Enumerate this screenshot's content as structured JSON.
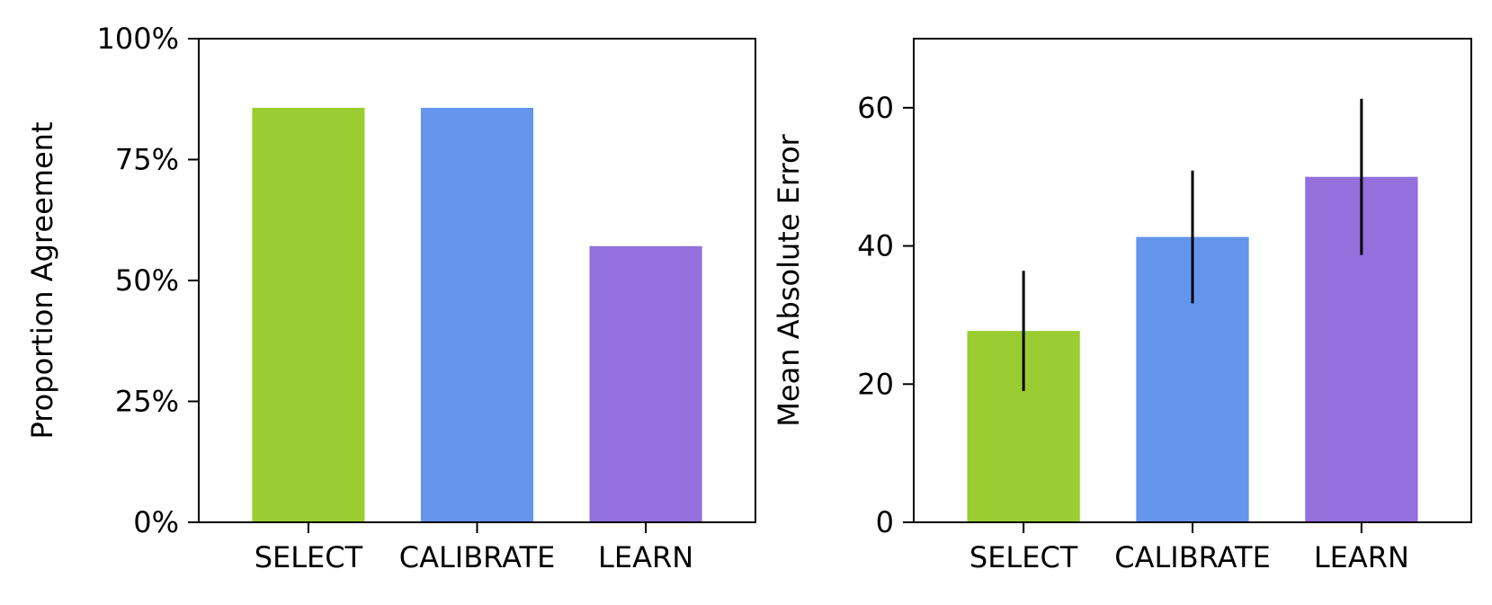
{
  "chart_data": [
    {
      "type": "bar",
      "categories": [
        "SELECT",
        "CALIBRATE",
        "LEARN"
      ],
      "values": [
        85.7,
        85.7,
        57.1
      ],
      "colors": [
        "#9acd32",
        "#6495ed",
        "#9370db"
      ],
      "ylabel": "Proportion Agreement",
      "xlabel": "",
      "ylim": [
        0,
        100
      ],
      "yticks": [
        0,
        25,
        50,
        75,
        100
      ],
      "ytick_labels": [
        "0%",
        "25%",
        "50%",
        "75%",
        "100%"
      ],
      "grid": false
    },
    {
      "type": "bar",
      "categories": [
        "SELECT",
        "CALIBRATE",
        "LEARN"
      ],
      "values": [
        27.7,
        41.3,
        50.0
      ],
      "error": [
        8.7,
        9.6,
        11.3
      ],
      "colors": [
        "#9acd32",
        "#6495ed",
        "#9370db"
      ],
      "ylabel": "Mean Absolute Error",
      "xlabel": "",
      "ylim": [
        0,
        70
      ],
      "yticks": [
        0,
        20,
        40,
        60
      ],
      "ytick_labels": [
        "0",
        "20",
        "40",
        "60"
      ],
      "grid": false
    }
  ]
}
